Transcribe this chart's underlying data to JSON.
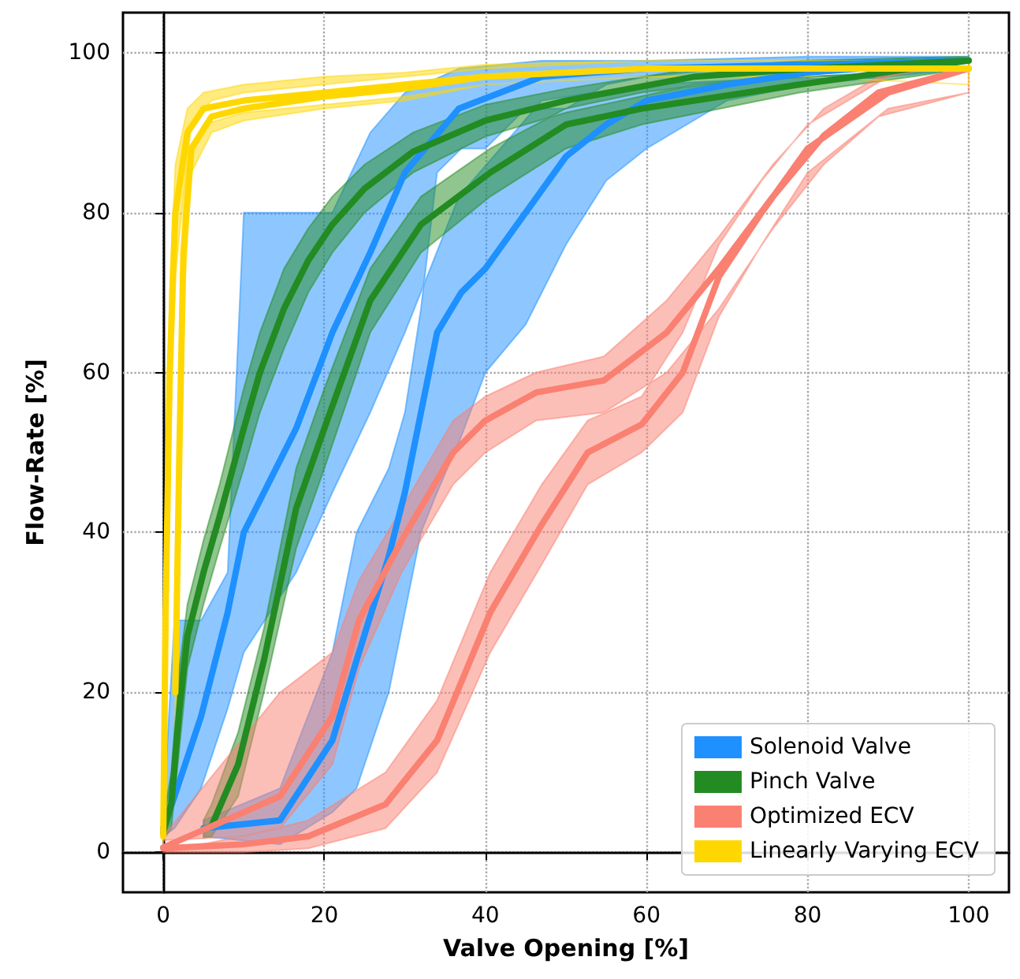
{
  "chart_data": {
    "type": "line",
    "xlabel": "Valve Opening [%]",
    "ylabel": "Flow-Rate [%]",
    "xlim": [
      -5,
      105
    ],
    "ylim": [
      -5,
      105
    ],
    "xticks": [
      0,
      20,
      40,
      60,
      80,
      100
    ],
    "yticks": [
      0,
      20,
      40,
      60,
      80,
      100
    ],
    "grid": true,
    "legend": "bottom right",
    "marker": "none",
    "line_style": "solid",
    "series": [
      {
        "name": "Solenoid Valve",
        "color": "#1e90ff",
        "x": [
          0,
          1.4,
          4.7,
          8,
          10,
          16.5,
          21,
          25.7,
          30,
          36.7,
          47,
          60,
          80,
          100,
          80,
          70,
          60,
          55,
          50,
          45,
          40,
          37,
          34,
          32,
          30,
          28,
          24,
          21,
          14.5,
          5
        ],
        "values": [
          3,
          7,
          17,
          30,
          40,
          53,
          65,
          75,
          85,
          93,
          97,
          98,
          98.5,
          99,
          97.5,
          96,
          94,
          91,
          87,
          80,
          73,
          70,
          65,
          55,
          45,
          37,
          24,
          14,
          4,
          3
        ],
        "lower": [
          2,
          3,
          8,
          18,
          25,
          35,
          45,
          55,
          65,
          82,
          94,
          96,
          97,
          98,
          96,
          94,
          88,
          84,
          76,
          66,
          60,
          52,
          45,
          40,
          30,
          20,
          8,
          5,
          1,
          2
        ],
        "upper": [
          5,
          29,
          29,
          35,
          80,
          80,
          80,
          90,
          95,
          98,
          99,
          99,
          99.5,
          99.5,
          99,
          98,
          97,
          96,
          93,
          93,
          88,
          88,
          85,
          68,
          55,
          48,
          40,
          25,
          8,
          4
        ]
      },
      {
        "name": "Pinch Valve",
        "color": "#228b22",
        "x": [
          0,
          1,
          2,
          3,
          5,
          7,
          10,
          12,
          15,
          18,
          21,
          25,
          31,
          40,
          50,
          66,
          80,
          100,
          79,
          59.4,
          50,
          40.6,
          32,
          25.7,
          20,
          16.5,
          12.5,
          9.3,
          6,
          5
        ],
        "values": [
          2.5,
          6,
          18,
          27,
          35,
          42,
          53,
          60,
          68,
          74,
          78.5,
          83,
          87.6,
          91.5,
          94,
          97,
          98,
          99,
          96,
          93,
          91,
          85,
          78.5,
          69,
          53,
          43,
          24,
          11,
          3.3,
          2.8
        ],
        "lower": [
          1.5,
          3,
          13,
          23,
          31,
          38,
          48,
          55,
          63,
          70,
          75,
          80,
          85,
          89.5,
          92.5,
          96,
          97,
          98,
          95,
          91,
          88,
          82,
          75,
          65,
          48,
          38,
          20,
          7,
          2,
          1.8
        ],
        "upper": [
          4,
          10,
          23,
          31,
          39,
          46,
          58,
          65,
          73,
          78,
          82,
          86,
          90,
          93.5,
          95.5,
          98,
          99,
          99.5,
          97.5,
          95,
          93,
          88,
          82,
          73,
          58,
          48,
          28,
          15,
          6,
          4
        ]
      },
      {
        "name": "Optimized ECV",
        "color": "#fa8072",
        "x": [
          0,
          14.5,
          21,
          24.3,
          29.6,
          36,
          40,
          46.3,
          54.7,
          62.5,
          69,
          75.7,
          82,
          88.8,
          100,
          90,
          80,
          74.3,
          69,
          64.5,
          59.4,
          52.7,
          47,
          40.6,
          34,
          27.6,
          18,
          10,
          0
        ],
        "values": [
          0.6,
          7,
          17,
          29,
          39,
          50,
          54,
          57.5,
          59,
          65,
          73,
          82,
          89.6,
          95,
          98,
          95,
          88,
          80,
          72,
          60,
          53.5,
          50,
          41,
          30,
          14,
          6,
          2,
          1,
          0.5
        ],
        "lower": [
          0,
          3,
          11,
          23,
          35,
          46,
          50,
          54,
          55,
          60,
          68,
          78,
          86,
          92,
          95,
          93,
          85,
          76,
          67,
          55,
          50,
          46,
          36,
          25,
          10,
          3,
          0.5,
          0,
          0
        ],
        "upper": [
          2,
          20,
          25,
          34,
          43,
          54,
          57,
          60,
          62,
          69,
          77,
          86,
          93,
          97,
          99,
          97,
          91,
          84,
          76,
          65,
          57,
          54,
          46,
          35,
          19,
          10,
          4,
          2,
          1.5
        ]
      },
      {
        "name": "Linearly Varying ECV",
        "color": "#ffd700",
        "x": [
          0,
          0.3,
          0.8,
          1.5,
          3,
          5,
          10,
          20,
          30,
          40,
          60,
          80,
          100,
          80,
          60,
          40,
          30,
          20,
          10,
          6,
          3.5,
          2.5,
          2,
          1.5
        ],
        "values": [
          2,
          30,
          60,
          80,
          90,
          93,
          94,
          95,
          96,
          97,
          98,
          98,
          98,
          98,
          98,
          97,
          95.5,
          94.5,
          93,
          92,
          88,
          75,
          50,
          20
        ],
        "lower": [
          1,
          20,
          50,
          72,
          87,
          91,
          92.5,
          93.5,
          94.5,
          96,
          97,
          97,
          96,
          97,
          97,
          96,
          94,
          93,
          91.5,
          90,
          85,
          68,
          42,
          12
        ],
        "upper": [
          4,
          40,
          70,
          86,
          93,
          95,
          96,
          97,
          97.5,
          98.5,
          99,
          99,
          99,
          99,
          99,
          98,
          97,
          96,
          95,
          94,
          91,
          82,
          58,
          28
        ]
      }
    ]
  }
}
